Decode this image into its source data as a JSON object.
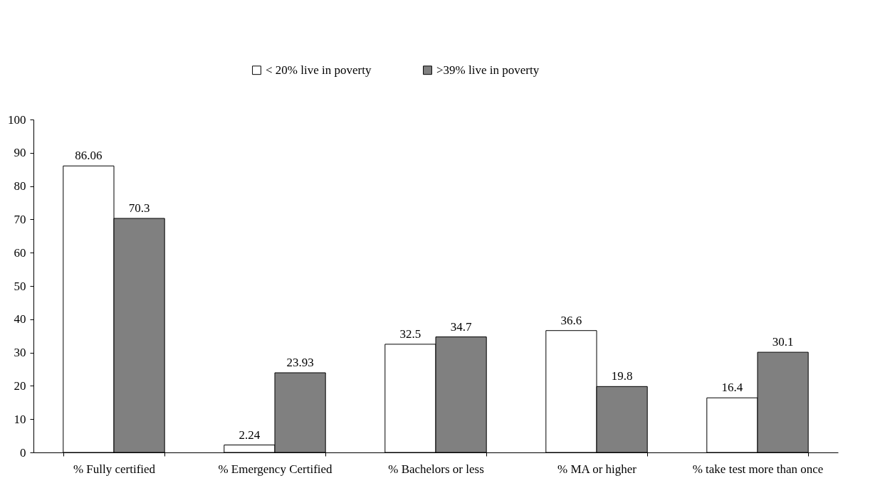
{
  "chart_data": {
    "type": "bar",
    "categories": [
      "% Fully certified",
      "% Emergency Certified",
      "% Bachelors or less",
      "% MA or higher",
      "% take test more than once"
    ],
    "series": [
      {
        "name": "< 20% live in poverty",
        "color": "#ffffff",
        "values": [
          86.06,
          2.24,
          32.5,
          36.6,
          16.4
        ]
      },
      {
        "name": ">39% live in poverty",
        "color": "#808080",
        "values": [
          70.3,
          23.93,
          34.7,
          19.8,
          30.1
        ]
      }
    ],
    "ylim": [
      0,
      100
    ],
    "yticks": [
      0,
      10,
      20,
      30,
      40,
      50,
      60,
      70,
      80,
      90,
      100
    ],
    "grid": false,
    "legend": "top",
    "data_labels": true
  }
}
